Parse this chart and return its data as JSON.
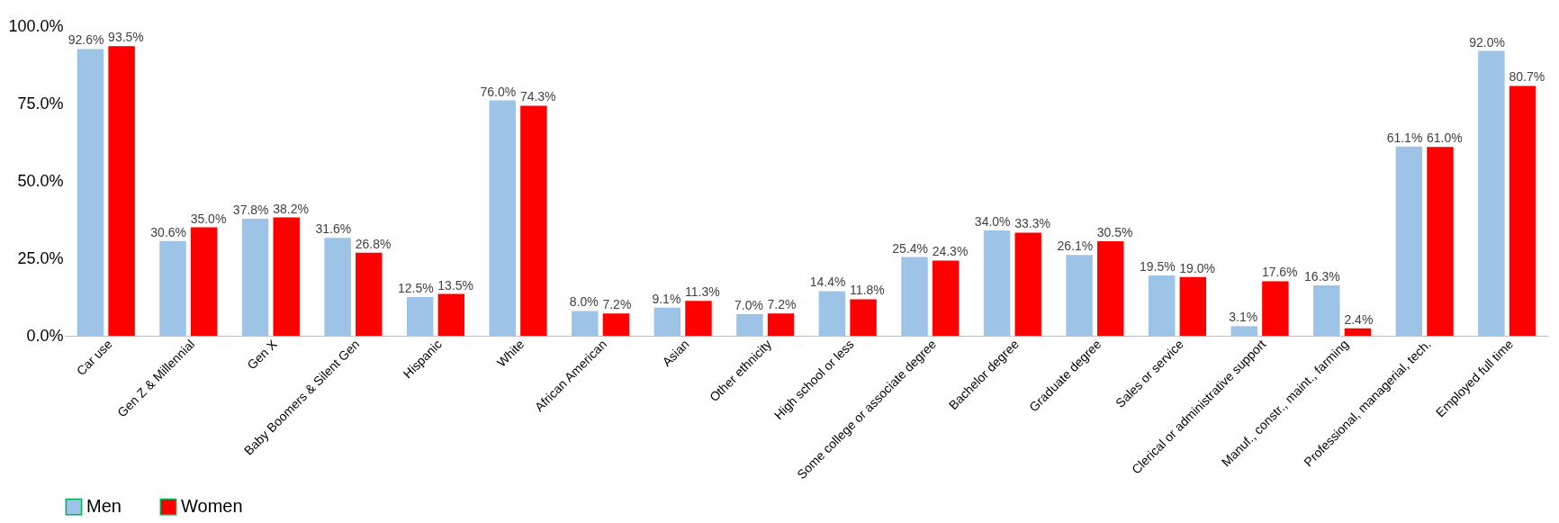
{
  "chart_data": {
    "type": "bar",
    "categories": [
      "Car use",
      "Gen Z & Millennial",
      "Gen X",
      "Baby Boomers & Silent Gen",
      "Hispanic",
      "White",
      "African American",
      "Asian",
      "Other ethnicity",
      "High school or less",
      "Some college or associate degree",
      "Bachelor degree",
      "Graduate degree",
      "Sales or service",
      "Clerical or administrative support",
      "Manuf., constr., maint., farming",
      "Professional, managerial, tech.",
      "Employed full time"
    ],
    "series": [
      {
        "name": "Men",
        "color": "#9dc3e6",
        "values": [
          92.6,
          30.6,
          37.8,
          31.6,
          12.5,
          76.0,
          8.0,
          9.1,
          7.0,
          14.4,
          25.4,
          34.0,
          26.1,
          19.5,
          3.1,
          16.3,
          61.1,
          92.0
        ],
        "value_labels": [
          "92.6%",
          "30.6%",
          "37.8%",
          "31.6%",
          "12.5%",
          "76.0%",
          "8.0%",
          "9.1%",
          "7.0%",
          "14.4%",
          "25.4%",
          "34.0%",
          "26.1%",
          "19.5%",
          "3.1%",
          "16.3%",
          "61.1%",
          "92.0%"
        ]
      },
      {
        "name": "Women",
        "color": "#ff0000",
        "values": [
          93.5,
          35.0,
          38.2,
          26.8,
          13.5,
          74.3,
          7.2,
          11.3,
          7.2,
          11.8,
          24.3,
          33.3,
          30.5,
          19.0,
          17.6,
          2.4,
          61.0,
          80.7
        ],
        "value_labels": [
          "93.5%",
          "35.0%",
          "38.2%",
          "26.8%",
          "13.5%",
          "74.3%",
          "7.2%",
          "11.3%",
          "7.2%",
          "11.8%",
          "24.3%",
          "33.3%",
          "30.5%",
          "19.0%",
          "17.6%",
          "2.4%",
          "61.0%",
          "80.7%"
        ]
      }
    ],
    "ylim": [
      0,
      100
    ],
    "yticks": [
      {
        "value": 0,
        "label": "0.0%"
      },
      {
        "value": 25,
        "label": "25.0%"
      },
      {
        "value": 50,
        "label": "50.0%"
      },
      {
        "value": 75,
        "label": "75.0%"
      },
      {
        "value": 100,
        "label": "100.0%"
      }
    ],
    "grid": false,
    "legend": "bottom"
  }
}
